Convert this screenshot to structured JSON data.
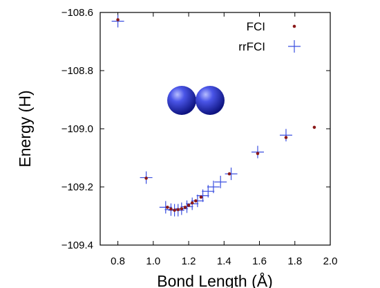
{
  "chart_data": {
    "type": "scatter",
    "title": "",
    "xlabel": "Bond Length (Å)",
    "ylabel": "Energy (H)",
    "xlim": [
      0.7,
      2.0
    ],
    "ylim": [
      -109.4,
      -108.6
    ],
    "x_ticks": [
      0.8,
      1.0,
      1.2,
      1.4,
      1.6,
      1.8,
      2.0
    ],
    "x_tick_labels": [
      "0.8",
      "1.0",
      "1.2",
      "1.4",
      "1.6",
      "1.8",
      "2.0"
    ],
    "y_ticks": [
      -109.4,
      -109.2,
      -109.0,
      -108.8,
      -108.6
    ],
    "y_tick_labels": [
      "−109.4",
      "−109.2",
      "−109.0",
      "−108.8",
      "−108.6"
    ],
    "grid": false,
    "legend_position": "top-right",
    "series": [
      {
        "name": "FCI",
        "marker": "dot",
        "color": "#8b1a1a",
        "points": [
          {
            "x": 0.8,
            "y": -108.625
          },
          {
            "x": 0.96,
            "y": -109.17
          },
          {
            "x": 1.08,
            "y": -109.27
          },
          {
            "x": 1.1,
            "y": -109.276
          },
          {
            "x": 1.12,
            "y": -109.28
          },
          {
            "x": 1.14,
            "y": -109.278
          },
          {
            "x": 1.16,
            "y": -109.275
          },
          {
            "x": 1.18,
            "y": -109.27
          },
          {
            "x": 1.2,
            "y": -109.263
          },
          {
            "x": 1.22,
            "y": -109.255
          },
          {
            "x": 1.24,
            "y": -109.248
          },
          {
            "x": 1.27,
            "y": -109.235
          },
          {
            "x": 1.43,
            "y": -109.155
          },
          {
            "x": 1.59,
            "y": -109.085
          },
          {
            "x": 1.75,
            "y": -109.03
          },
          {
            "x": 1.91,
            "y": -108.995
          }
        ]
      },
      {
        "name": "rrFCI",
        "marker": "plus",
        "color": "#3a4fe0",
        "points": [
          {
            "x": 0.8,
            "y": -108.63
          },
          {
            "x": 0.96,
            "y": -109.168
          },
          {
            "x": 1.07,
            "y": -109.27
          },
          {
            "x": 1.1,
            "y": -109.278
          },
          {
            "x": 1.12,
            "y": -109.28
          },
          {
            "x": 1.14,
            "y": -109.28
          },
          {
            "x": 1.16,
            "y": -109.275
          },
          {
            "x": 1.19,
            "y": -109.268
          },
          {
            "x": 1.22,
            "y": -109.258
          },
          {
            "x": 1.25,
            "y": -109.248
          },
          {
            "x": 1.28,
            "y": -109.23
          },
          {
            "x": 1.31,
            "y": -109.215
          },
          {
            "x": 1.34,
            "y": -109.2
          },
          {
            "x": 1.38,
            "y": -109.183
          },
          {
            "x": 1.44,
            "y": -109.155
          },
          {
            "x": 1.59,
            "y": -109.08
          },
          {
            "x": 1.75,
            "y": -109.022
          }
        ]
      }
    ]
  },
  "inset": {
    "icon": "diatomic-molecule-icon",
    "color": "#2a35c8"
  }
}
